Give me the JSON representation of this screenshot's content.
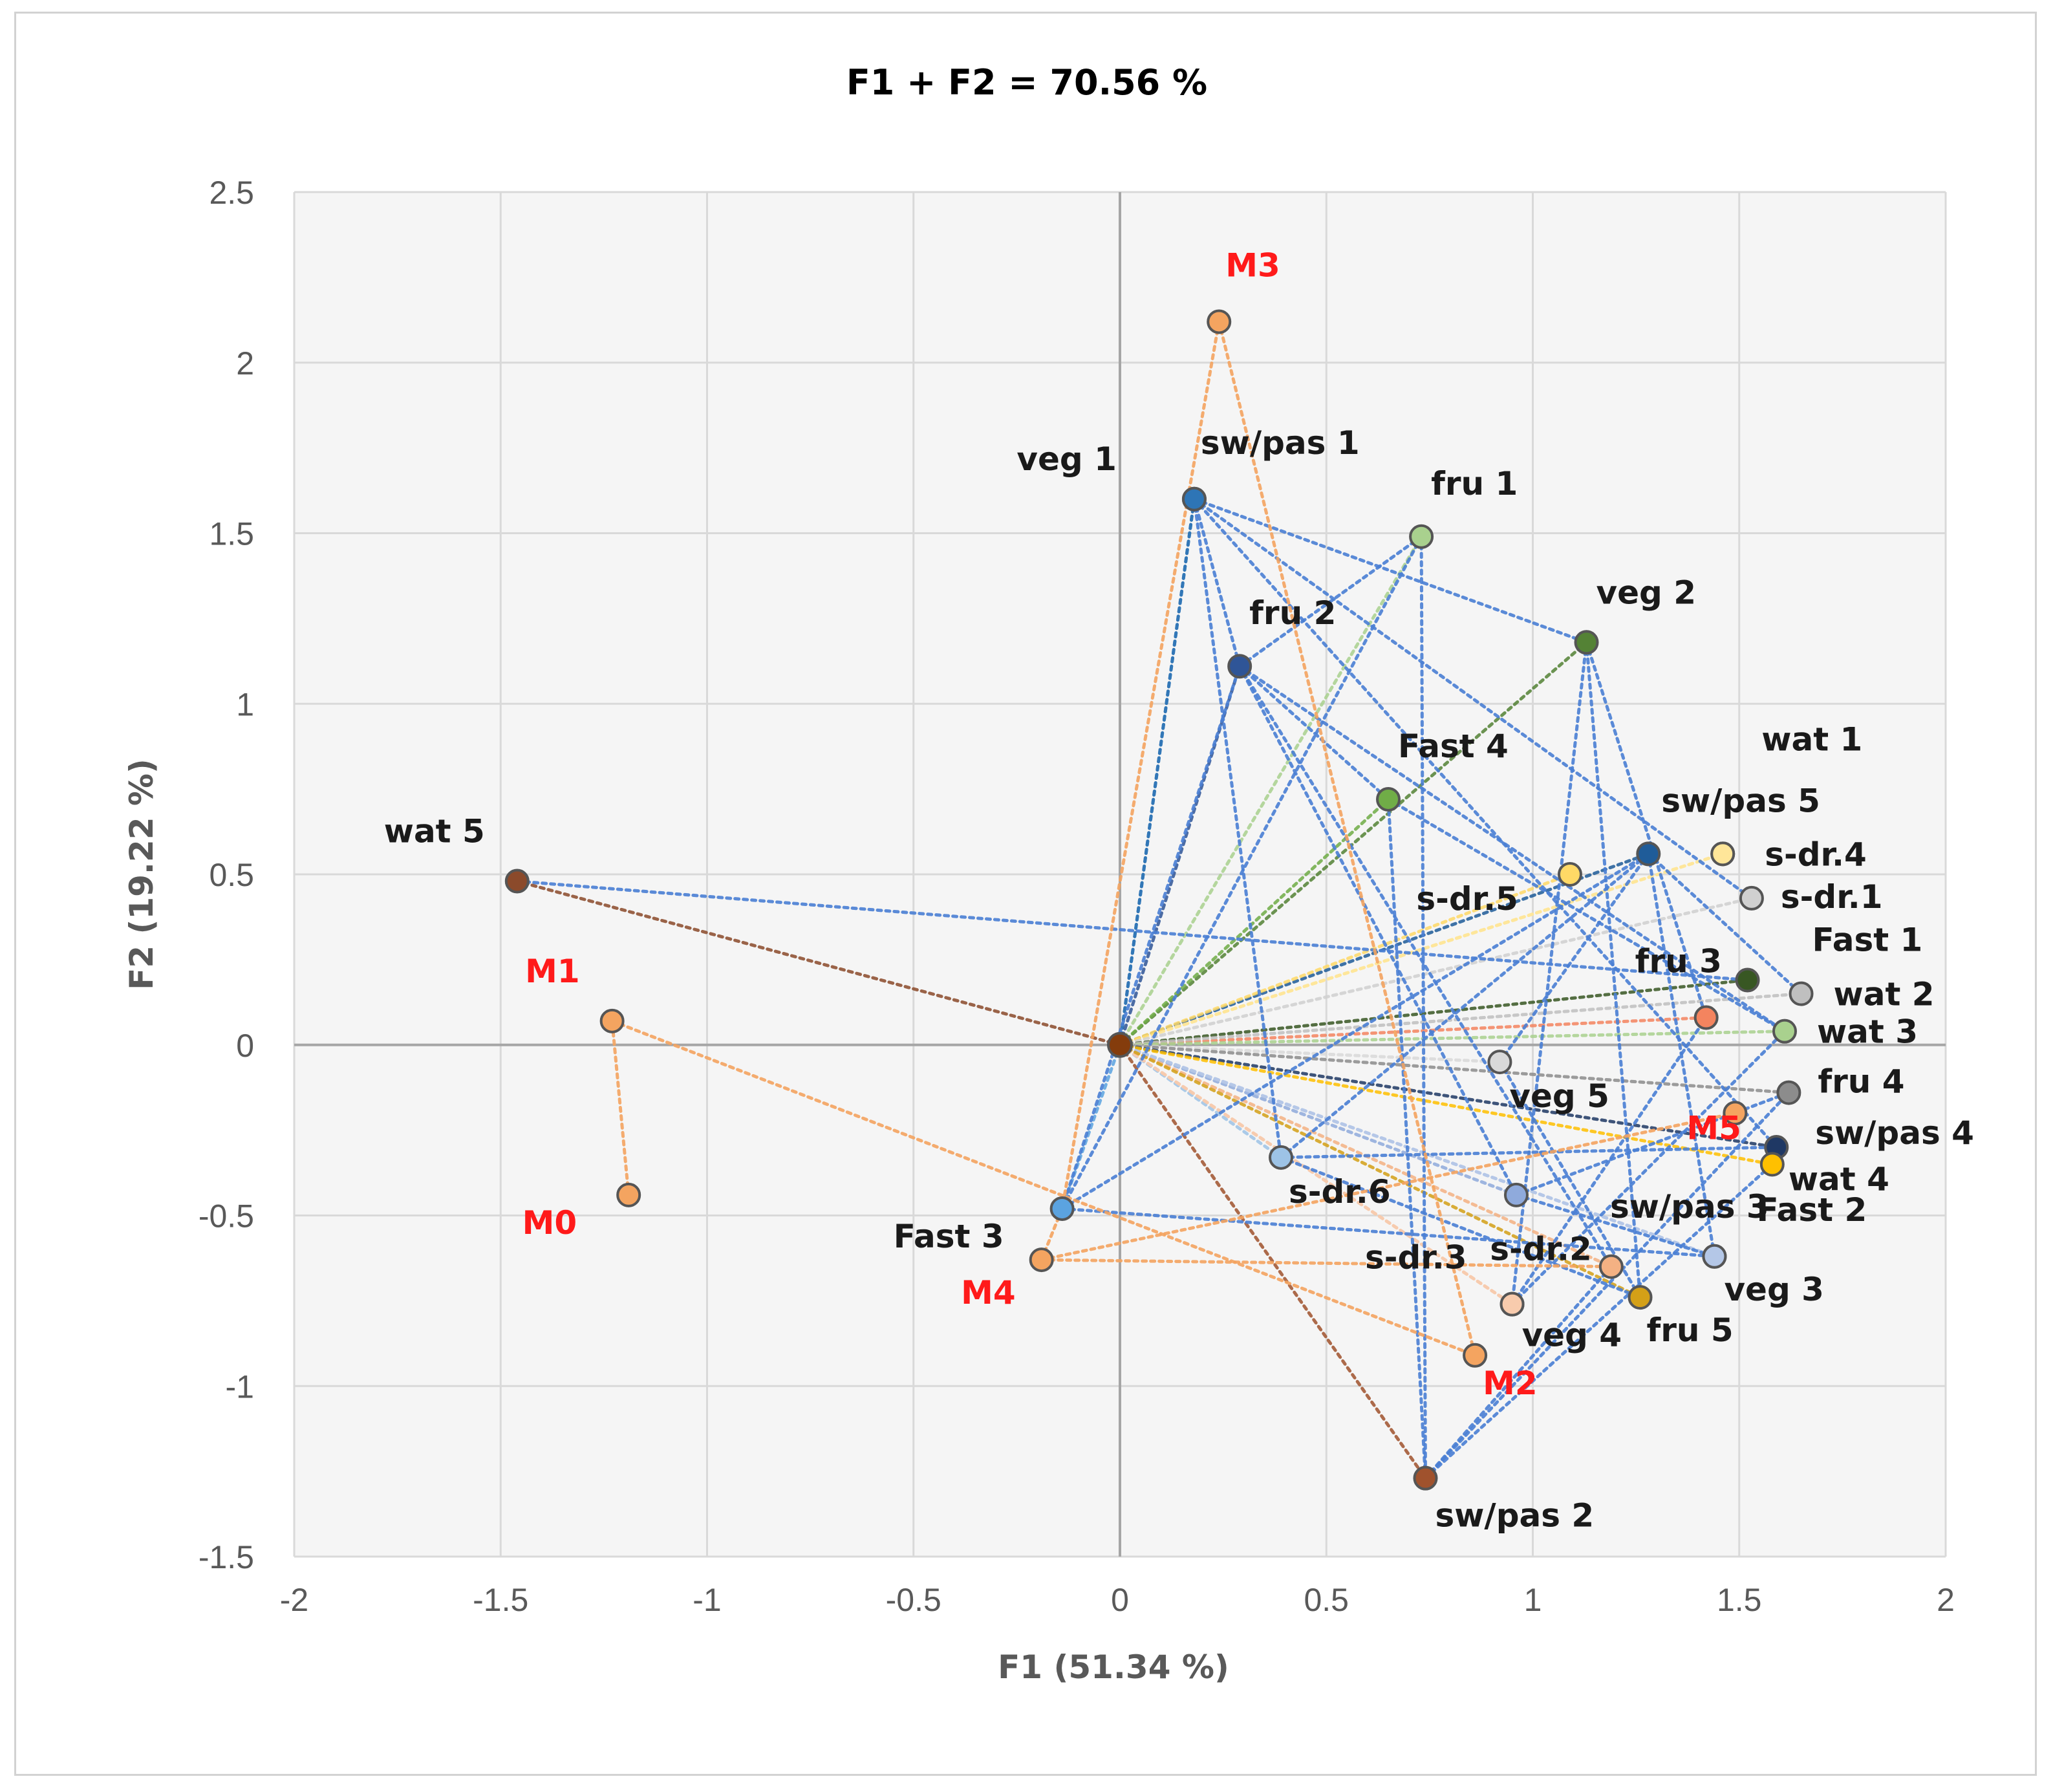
{
  "chart_data": {
    "type": "scatter",
    "title": "F1 + F2 = 70.56 %",
    "xlabel": "F1 (51.34 %)",
    "ylabel": "F2 (19.22 %)",
    "xlim": [
      -2,
      2
    ],
    "ylim": [
      -1.5,
      2.5
    ],
    "xticks": [
      -2,
      -1.5,
      -1,
      -0.5,
      0,
      0.5,
      1,
      1.5,
      2
    ],
    "yticks": [
      -1.5,
      -1,
      -0.5,
      0,
      0.5,
      1,
      1.5,
      2,
      2.5
    ],
    "xtick_labels": [
      "-2",
      "-1.5",
      "-1",
      "-0.5",
      "0",
      "0.5",
      "1",
      "1.5",
      "2"
    ],
    "ytick_labels": [
      "-1.5",
      "-1",
      "-0.5",
      "0",
      "0.5",
      "1",
      "1.5",
      "2",
      "2.5"
    ],
    "grid": true,
    "origin": {
      "x": 0,
      "y": 0,
      "color": "#843c0c"
    },
    "points": [
      {
        "label": "M0",
        "x": -1.19,
        "y": -0.44,
        "color": "#f4a460",
        "label_color": "red"
      },
      {
        "label": "M1",
        "x": -1.23,
        "y": 0.07,
        "color": "#f4a460",
        "label_color": "red"
      },
      {
        "label": "M2",
        "x": 0.86,
        "y": -0.91,
        "color": "#f4a460",
        "label_color": "red"
      },
      {
        "label": "M3",
        "x": 0.24,
        "y": 2.12,
        "color": "#f4a460",
        "label_color": "red"
      },
      {
        "label": "M4",
        "x": -0.19,
        "y": -0.63,
        "color": "#f4a460",
        "label_color": "red"
      },
      {
        "label": "M5",
        "x": 1.49,
        "y": -0.2,
        "color": "#f4a460",
        "label_color": "red"
      },
      {
        "label": "wat 5",
        "x": -1.46,
        "y": 0.48,
        "color": "#8b4a2b",
        "label_color": "black"
      },
      {
        "label": "veg 1",
        "x": 0.18,
        "y": 1.6,
        "color": "#2e75b6",
        "label_color": "black"
      },
      {
        "label": "sw/pas 1",
        "x": 0.18,
        "y": 1.6,
        "color": "#2e75b6",
        "label_color": "black"
      },
      {
        "label": "fru 1",
        "x": 0.73,
        "y": 1.49,
        "color": "#a9d18e",
        "label_color": "black"
      },
      {
        "label": "fru 2",
        "x": 0.29,
        "y": 1.11,
        "color": "#2f5597",
        "label_color": "black"
      },
      {
        "label": "veg 2",
        "x": 1.13,
        "y": 1.18,
        "color": "#548235",
        "label_color": "black"
      },
      {
        "label": "Fast 4",
        "x": 0.65,
        "y": 0.72,
        "color": "#70ad47",
        "label_color": "black"
      },
      {
        "label": "wat 1",
        "x": 1.28,
        "y": 0.56,
        "color": "#1f5c99",
        "label_color": "black"
      },
      {
        "label": "sw/pas 5",
        "x": 1.46,
        "y": 0.56,
        "color": "#ffe699",
        "label_color": "black"
      },
      {
        "label": "s-dr.4",
        "x": 1.46,
        "y": 0.56,
        "color": "#ffe699",
        "label_color": "black"
      },
      {
        "label": "s-dr.5",
        "x": 1.09,
        "y": 0.5,
        "color": "#ffd966",
        "label_color": "black"
      },
      {
        "label": "s-dr.1",
        "x": 1.53,
        "y": 0.43,
        "color": "#d0d0d0",
        "label_color": "black"
      },
      {
        "label": "Fast 1",
        "x": 1.52,
        "y": 0.19,
        "color": "#385723",
        "label_color": "black"
      },
      {
        "label": "fru 3",
        "x": 1.42,
        "y": 0.08,
        "color": "#f4845f",
        "label_color": "black"
      },
      {
        "label": "wat 2",
        "x": 1.65,
        "y": 0.15,
        "color": "#bfbfbf",
        "label_color": "black"
      },
      {
        "label": "wat 3",
        "x": 1.61,
        "y": 0.04,
        "color": "#a9d18e",
        "label_color": "black"
      },
      {
        "label": "veg 5",
        "x": 0.92,
        "y": -0.05,
        "color": "#d9d9d9",
        "label_color": "black"
      },
      {
        "label": "fru 4",
        "x": 1.62,
        "y": -0.14,
        "color": "#8c8c8c",
        "label_color": "black"
      },
      {
        "label": "sw/pas 4",
        "x": 1.59,
        "y": -0.3,
        "color": "#1f3864",
        "label_color": "black"
      },
      {
        "label": "wat 4",
        "x": 1.58,
        "y": -0.35,
        "color": "#ffc000",
        "label_color": "black"
      },
      {
        "label": "s-dr.6",
        "x": 0.39,
        "y": -0.33,
        "color": "#9dc3e6",
        "label_color": "black"
      },
      {
        "label": "Fast 3",
        "x": -0.14,
        "y": -0.48,
        "color": "#5ba3e0",
        "label_color": "black"
      },
      {
        "label": "sw/pas 3",
        "x": 0.96,
        "y": -0.44,
        "color": "#8faadc",
        "label_color": "black"
      },
      {
        "label": "Fast 2",
        "x": 1.44,
        "y": -0.62,
        "color": "#b4c7e7",
        "label_color": "black"
      },
      {
        "label": "s-dr.2",
        "x": 1.19,
        "y": -0.65,
        "color": "#f4b183",
        "label_color": "black"
      },
      {
        "label": "veg 3",
        "x": 1.44,
        "y": -0.62,
        "color": "#b4c7e7",
        "label_color": "black"
      },
      {
        "label": "s-dr.3",
        "x": 0.95,
        "y": -0.76,
        "color": "#f8cbad",
        "label_color": "black"
      },
      {
        "label": "veg 4",
        "x": 0.95,
        "y": -0.76,
        "color": "#f8cbad",
        "label_color": "black"
      },
      {
        "label": "fru 5",
        "x": 1.26,
        "y": -0.74,
        "color": "#d4a017",
        "label_color": "black"
      },
      {
        "label": "sw/pas 2",
        "x": 0.74,
        "y": -1.27,
        "color": "#a0522d",
        "label_color": "black"
      }
    ],
    "labels_omitted": [
      "none"
    ]
  }
}
